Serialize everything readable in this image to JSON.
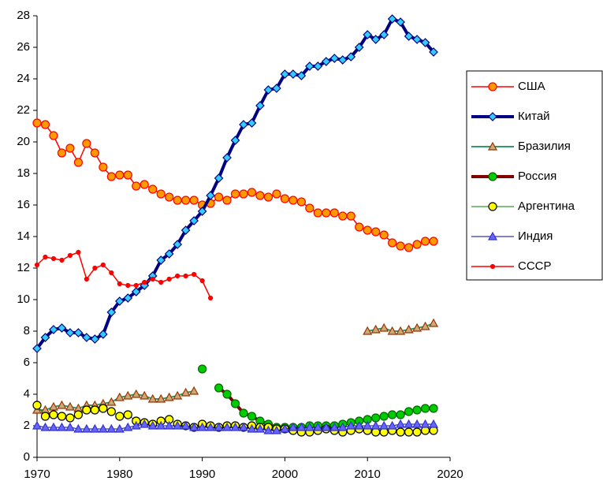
{
  "chart_data": {
    "type": "line",
    "x": [
      1970,
      1971,
      1972,
      1973,
      1974,
      1975,
      1976,
      1977,
      1978,
      1979,
      1980,
      1981,
      1982,
      1983,
      1984,
      1985,
      1986,
      1987,
      1988,
      1989,
      1990,
      1991,
      1992,
      1993,
      1994,
      1995,
      1996,
      1997,
      1998,
      1999,
      2000,
      2001,
      2002,
      2003,
      2004,
      2005,
      2006,
      2007,
      2008,
      2009,
      2010,
      2011,
      2012,
      2013,
      2014,
      2015,
      2016,
      2017,
      2018
    ],
    "xlim": [
      1970,
      2020
    ],
    "xticks": [
      1970,
      1980,
      1990,
      2000,
      2010,
      2020
    ],
    "ylim": [
      0,
      28
    ],
    "yticks": [
      0,
      2,
      4,
      6,
      8,
      10,
      12,
      14,
      16,
      18,
      20,
      22,
      24,
      26,
      28
    ],
    "grid": false,
    "legend": "right",
    "series": [
      {
        "name": "США",
        "color": "#ff0000",
        "marker": "circle",
        "marker_color": "#ff9900",
        "marker_edge": "#ff0000",
        "line_width": 1.5,
        "values": [
          21.2,
          21.1,
          20.4,
          19.3,
          19.6,
          18.7,
          19.9,
          19.3,
          18.4,
          17.8,
          17.9,
          17.9,
          17.2,
          17.3,
          17.0,
          16.7,
          16.5,
          16.3,
          16.3,
          16.3,
          16.0,
          16.1,
          16.5,
          16.3,
          16.7,
          16.7,
          16.8,
          16.6,
          16.5,
          16.7,
          16.4,
          16.3,
          16.2,
          15.8,
          15.5,
          15.5,
          15.5,
          15.3,
          15.3,
          14.6,
          14.4,
          14.3,
          14.1,
          13.6,
          13.4,
          13.3,
          13.5,
          13.7,
          13.7
        ]
      },
      {
        "name": "Китай",
        "color": "#000080",
        "marker": "diamond",
        "marker_color": "#33ccff",
        "marker_edge": "#000080",
        "line_width": 4,
        "values": [
          6.9,
          7.6,
          8.1,
          8.2,
          7.9,
          7.9,
          7.6,
          7.5,
          7.8,
          9.2,
          9.9,
          10.1,
          10.5,
          10.9,
          11.5,
          12.5,
          12.9,
          13.5,
          14.4,
          15.0,
          15.6,
          16.6,
          17.7,
          19.0,
          20.1,
          21.1,
          21.2,
          22.3,
          23.3,
          23.4,
          24.3,
          24.3,
          24.2,
          24.8,
          24.8,
          25.1,
          25.3,
          25.2,
          25.4,
          26.0,
          26.8,
          26.5,
          26.8,
          27.8,
          27.6,
          26.7,
          26.5,
          26.3,
          25.7
        ]
      },
      {
        "name": "Бразилия",
        "color": "#339966",
        "marker": "triangle",
        "marker_color": "#ccaa77",
        "marker_edge": "#993300",
        "line_width": 2,
        "values": [
          3.0,
          3.0,
          3.2,
          3.3,
          3.2,
          3.1,
          3.3,
          3.3,
          3.4,
          3.5,
          3.8,
          3.9,
          4.0,
          3.9,
          3.7,
          3.7,
          3.8,
          3.9,
          4.1,
          4.2,
          null,
          null,
          null,
          null,
          null,
          null,
          null,
          null,
          null,
          null,
          null,
          null,
          null,
          null,
          null,
          null,
          null,
          null,
          null,
          null,
          8.0,
          8.1,
          8.2,
          8.0,
          8.0,
          8.1,
          8.2,
          8.3,
          8.5
        ]
      },
      {
        "name": "Россия",
        "color": "#800000",
        "marker": "circle",
        "marker_color": "#00cc00",
        "marker_edge": "#006600",
        "line_width": 4,
        "values": [
          null,
          null,
          null,
          null,
          null,
          null,
          null,
          null,
          null,
          null,
          null,
          null,
          null,
          null,
          null,
          null,
          null,
          null,
          null,
          null,
          5.6,
          null,
          4.4,
          4.0,
          3.4,
          2.8,
          2.6,
          2.3,
          2.1,
          1.9,
          1.9,
          1.9,
          1.9,
          2.0,
          2.0,
          2.0,
          2.0,
          2.1,
          2.2,
          2.3,
          2.4,
          2.5,
          2.6,
          2.7,
          2.7,
          2.9,
          3.0,
          3.1,
          3.1
        ]
      },
      {
        "name": "Аргентина",
        "color": "#008000",
        "marker": "circle",
        "marker_color": "#ffff00",
        "marker_edge": "#000000",
        "line_width": 1,
        "values": [
          3.3,
          2.6,
          2.7,
          2.6,
          2.5,
          2.7,
          3.0,
          3.0,
          3.1,
          2.9,
          2.6,
          2.7,
          2.3,
          2.2,
          2.1,
          2.3,
          2.4,
          2.1,
          2.0,
          1.9,
          2.1,
          2.0,
          1.9,
          2.0,
          2.0,
          1.9,
          2.0,
          1.9,
          1.9,
          1.8,
          1.8,
          1.7,
          1.6,
          1.6,
          1.7,
          1.8,
          1.7,
          1.6,
          1.7,
          1.8,
          1.7,
          1.6,
          1.6,
          1.7,
          1.6,
          1.6,
          1.6,
          1.7,
          1.7
        ]
      },
      {
        "name": "Индия",
        "color": "#000099",
        "marker": "triangle",
        "marker_color": "#6666ff",
        "marker_edge": "#3333cc",
        "line_width": 1,
        "values": [
          2.0,
          1.9,
          1.9,
          1.9,
          1.9,
          1.8,
          1.8,
          1.8,
          1.8,
          1.8,
          1.8,
          1.9,
          2.0,
          2.1,
          2.0,
          2.0,
          2.0,
          2.0,
          2.0,
          1.9,
          1.9,
          1.9,
          1.9,
          1.9,
          1.9,
          1.9,
          1.8,
          1.8,
          1.7,
          1.7,
          1.8,
          1.9,
          1.9,
          1.9,
          1.9,
          1.9,
          1.9,
          1.9,
          2.0,
          2.0,
          2.0,
          2.0,
          2.0,
          2.0,
          2.1,
          2.1,
          2.1,
          2.1,
          2.1
        ]
      },
      {
        "name": "СССР",
        "color": "#ff0000",
        "marker": "dot",
        "marker_color": "#ff0000",
        "marker_edge": "#ff0000",
        "line_width": 1.5,
        "values": [
          12.2,
          12.7,
          12.6,
          12.5,
          12.8,
          13.0,
          11.3,
          12.0,
          12.2,
          11.7,
          11.0,
          10.9,
          10.9,
          11.1,
          11.3,
          11.1,
          11.3,
          11.5,
          11.5,
          11.6,
          11.2,
          10.1,
          null,
          null,
          null,
          null,
          null,
          null,
          null,
          null,
          null,
          null,
          null,
          null,
          null,
          null,
          null,
          null,
          null,
          null,
          null,
          null,
          null,
          null,
          null,
          null,
          null,
          null,
          null
        ]
      }
    ]
  }
}
